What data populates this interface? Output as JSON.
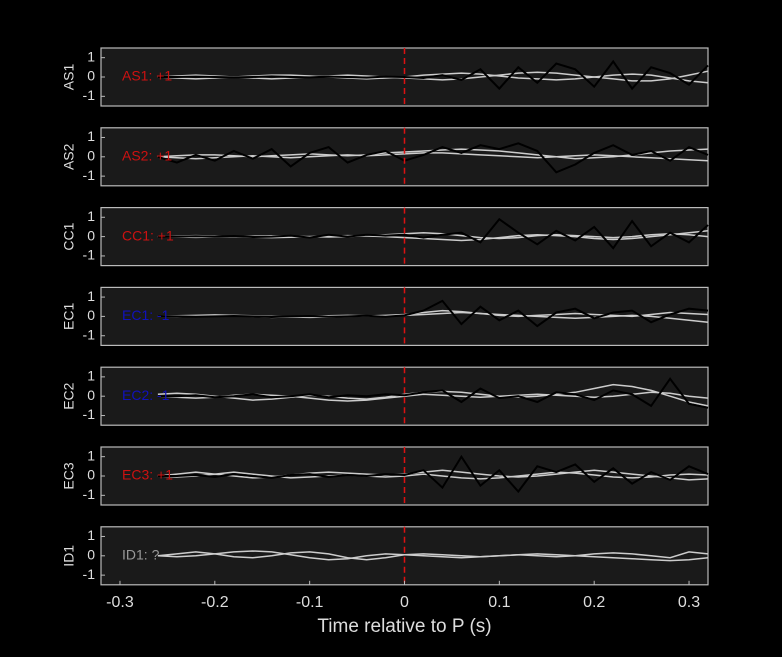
{
  "chart_data": [
    {
      "type": "line",
      "ylabel": "AS1",
      "annotation": "AS1: +1",
      "annotation_color": "#cc1111",
      "xlim": [
        -0.32,
        0.32
      ],
      "ylim": [
        -1.5,
        1.5
      ],
      "yticks": [
        -1,
        0,
        1
      ],
      "vline": 0,
      "vline_color": "#dd1111",
      "x": [
        -0.26,
        -0.24,
        -0.22,
        -0.2,
        -0.18,
        -0.16,
        -0.14,
        -0.12,
        -0.1,
        -0.08,
        -0.06,
        -0.04,
        -0.02,
        0,
        0.02,
        0.04,
        0.06,
        0.08,
        0.1,
        0.12,
        0.14,
        0.16,
        0.18,
        0.2,
        0.22,
        0.24,
        0.26,
        0.28,
        0.3,
        0.32
      ],
      "series": [
        {
          "color": "#cccccc",
          "values": [
            0,
            0.05,
            0.1,
            0.05,
            0,
            -0.05,
            -0.1,
            -0.05,
            0,
            0.05,
            0.1,
            0.05,
            0,
            -0.05,
            -0.1,
            -0.15,
            -0.1,
            0,
            0.1,
            0.2,
            0.25,
            0.2,
            0.1,
            0,
            -0.1,
            -0.2,
            -0.2,
            -0.1,
            0.1,
            0.3
          ]
        },
        {
          "color": "#cccccc",
          "values": [
            0,
            -0.05,
            -0.1,
            -0.05,
            0,
            0.05,
            0.1,
            0.1,
            0.05,
            0,
            -0.05,
            -0.1,
            -0.05,
            0,
            0.1,
            0.15,
            0.2,
            0.15,
            0.05,
            -0.05,
            -0.1,
            -0.15,
            -0.1,
            0,
            0.1,
            0.15,
            0.1,
            -0.05,
            -0.2,
            -0.3
          ]
        },
        {
          "color": "#000000",
          "values": [
            0,
            0,
            0.02,
            0,
            -0.02,
            0,
            0.03,
            0,
            -0.02,
            0.02,
            0,
            -0.03,
            0.02,
            0,
            -0.05,
            0.1,
            -0.15,
            0.4,
            -0.6,
            0.5,
            -0.3,
            0.7,
            0.4,
            -0.5,
            0.8,
            -0.6,
            0.5,
            0.2,
            -0.4,
            0.6
          ]
        }
      ]
    },
    {
      "type": "line",
      "ylabel": "AS2",
      "annotation": "AS2: +1",
      "annotation_color": "#cc1111",
      "xlim": [
        -0.32,
        0.32
      ],
      "ylim": [
        -1.5,
        1.5
      ],
      "yticks": [
        -1,
        0,
        1
      ],
      "vline": 0,
      "vline_color": "#dd1111",
      "x": [
        -0.26,
        -0.24,
        -0.22,
        -0.2,
        -0.18,
        -0.16,
        -0.14,
        -0.12,
        -0.1,
        -0.08,
        -0.06,
        -0.04,
        -0.02,
        0,
        0.02,
        0.04,
        0.06,
        0.08,
        0.1,
        0.12,
        0.14,
        0.16,
        0.18,
        0.2,
        0.22,
        0.24,
        0.26,
        0.28,
        0.3,
        0.32
      ],
      "series": [
        {
          "color": "#cccccc",
          "values": [
            0,
            0.05,
            0.1,
            0.1,
            0.05,
            0,
            0.05,
            0.1,
            0.15,
            0.1,
            0.05,
            0.1,
            0.2,
            0.25,
            0.3,
            0.35,
            0.4,
            0.35,
            0.3,
            0.2,
            0.1,
            0,
            -0.1,
            -0.05,
            0,
            0.1,
            0.2,
            0.3,
            0.35,
            0.4
          ]
        },
        {
          "color": "#cccccc",
          "values": [
            0,
            -0.05,
            -0.1,
            -0.05,
            0,
            0.05,
            0,
            -0.05,
            0,
            0.05,
            0.1,
            0.05,
            0.1,
            0.15,
            0.2,
            0.2,
            0.15,
            0.1,
            0.05,
            0,
            -0.05,
            0,
            0.05,
            0.1,
            0.05,
            0,
            -0.05,
            -0.1,
            -0.15,
            -0.2
          ]
        },
        {
          "color": "#000000",
          "values": [
            0,
            -0.3,
            0.1,
            -0.2,
            0.3,
            -0.1,
            0.4,
            -0.5,
            0.2,
            0.5,
            -0.3,
            0.1,
            0.3,
            -0.2,
            0.1,
            0.5,
            0.2,
            0.6,
            0.4,
            0.7,
            0.3,
            -0.8,
            -0.4,
            0.2,
            0.6,
            0.1,
            0.3,
            -0.2,
            0.5,
            0.1
          ]
        }
      ]
    },
    {
      "type": "line",
      "ylabel": "CC1",
      "annotation": "CC1: +1",
      "annotation_color": "#cc1111",
      "xlim": [
        -0.32,
        0.32
      ],
      "ylim": [
        -1.5,
        1.5
      ],
      "yticks": [
        -1,
        0,
        1
      ],
      "vline": 0,
      "vline_color": "#dd1111",
      "x": [
        -0.26,
        -0.24,
        -0.22,
        -0.2,
        -0.18,
        -0.16,
        -0.14,
        -0.12,
        -0.1,
        -0.08,
        -0.06,
        -0.04,
        -0.02,
        0,
        0.02,
        0.04,
        0.06,
        0.08,
        0.1,
        0.12,
        0.14,
        0.16,
        0.18,
        0.2,
        0.22,
        0.24,
        0.26,
        0.28,
        0.3,
        0.32
      ],
      "series": [
        {
          "color": "#cccccc",
          "values": [
            0,
            0.03,
            0.05,
            0.03,
            0,
            -0.03,
            -0.05,
            -0.03,
            0,
            0.03,
            0.05,
            0.03,
            0,
            -0.05,
            -0.1,
            -0.15,
            -0.2,
            -0.15,
            -0.05,
            0.05,
            0.1,
            0.05,
            0,
            -0.1,
            -0.15,
            -0.1,
            0,
            0.1,
            0.2,
            0.3
          ]
        },
        {
          "color": "#cccccc",
          "values": [
            0,
            -0.02,
            -0.04,
            -0.02,
            0,
            0.02,
            0.04,
            0.02,
            0,
            -0.02,
            0,
            0.05,
            0.1,
            0.15,
            0.2,
            0.15,
            0.05,
            -0.05,
            -0.1,
            -0.05,
            0.05,
            0.1,
            0.05,
            0,
            -0.05,
            0,
            0.1,
            0.15,
            0.1,
            0
          ]
        },
        {
          "color": "#000000",
          "values": [
            0,
            0,
            0.02,
            0,
            0.03,
            -0.02,
            0,
            0.05,
            -0.05,
            0.1,
            0,
            0.1,
            0.05,
            0.1,
            -0.05,
            0.1,
            0.2,
            -0.3,
            0.9,
            0.2,
            -0.4,
            0.3,
            -0.2,
            0.5,
            -0.6,
            0.8,
            -0.5,
            0.2,
            -0.3,
            0.6
          ]
        }
      ]
    },
    {
      "type": "line",
      "ylabel": "EC1",
      "annotation": "EC1: -1",
      "annotation_color": "#1111bb",
      "xlim": [
        -0.32,
        0.32
      ],
      "ylim": [
        -1.5,
        1.5
      ],
      "yticks": [
        -1,
        0,
        1
      ],
      "vline": 0,
      "vline_color": "#dd1111",
      "x": [
        -0.26,
        -0.24,
        -0.22,
        -0.2,
        -0.18,
        -0.16,
        -0.14,
        -0.12,
        -0.1,
        -0.08,
        -0.06,
        -0.04,
        -0.02,
        0,
        0.02,
        0.04,
        0.06,
        0.08,
        0.1,
        0.12,
        0.14,
        0.16,
        0.18,
        0.2,
        0.22,
        0.24,
        0.26,
        0.28,
        0.3,
        0.32
      ],
      "series": [
        {
          "color": "#cccccc",
          "values": [
            0,
            0.03,
            0.05,
            0.08,
            0.05,
            0,
            -0.05,
            -0.03,
            0,
            0.03,
            0.05,
            0.03,
            0,
            0.05,
            0.1,
            0.15,
            0.2,
            0.15,
            0.1,
            0.05,
            0,
            -0.05,
            -0.1,
            -0.05,
            0,
            0.05,
            0,
            -0.1,
            -0.2,
            -0.3
          ]
        },
        {
          "color": "#cccccc",
          "values": [
            0,
            -0.02,
            0,
            0.02,
            0.05,
            0.03,
            0,
            -0.03,
            -0.05,
            -0.03,
            0,
            0.02,
            0.05,
            0.1,
            0.2,
            0.3,
            0.25,
            0.15,
            0.05,
            0,
            0.05,
            0.1,
            0.15,
            0.1,
            0.05,
            0,
            0.1,
            0.2,
            0.15,
            0.1
          ]
        },
        {
          "color": "#000000",
          "values": [
            0,
            0,
            -0.02,
            0,
            0.02,
            0,
            -0.03,
            0,
            0.02,
            -0.02,
            0,
            0.03,
            -0.02,
            0.05,
            0.3,
            0.8,
            -0.4,
            0.5,
            -0.2,
            0.3,
            -0.5,
            0.2,
            0.4,
            -0.1,
            0.2,
            0.3,
            -0.3,
            0.1,
            0.4,
            0.3
          ]
        }
      ]
    },
    {
      "type": "line",
      "ylabel": "EC2",
      "annotation": "EC2: -1",
      "annotation_color": "#1111bb",
      "xlim": [
        -0.32,
        0.32
      ],
      "ylim": [
        -1.5,
        1.5
      ],
      "yticks": [
        -1,
        0,
        1
      ],
      "vline": 0,
      "vline_color": "#dd1111",
      "x": [
        -0.26,
        -0.24,
        -0.22,
        -0.2,
        -0.18,
        -0.16,
        -0.14,
        -0.12,
        -0.1,
        -0.08,
        -0.06,
        -0.04,
        -0.02,
        0,
        0.02,
        0.04,
        0.06,
        0.08,
        0.1,
        0.12,
        0.14,
        0.16,
        0.18,
        0.2,
        0.22,
        0.24,
        0.26,
        0.28,
        0.3,
        0.32
      ],
      "series": [
        {
          "color": "#cccccc",
          "values": [
            0.1,
            0.15,
            0.1,
            0,
            -0.1,
            -0.2,
            -0.15,
            -0.05,
            0.05,
            0,
            -0.1,
            -0.15,
            -0.05,
            0.1,
            0.2,
            0.25,
            0.2,
            0.1,
            0,
            -0.05,
            0,
            0.1,
            0.2,
            0.4,
            0.6,
            0.5,
            0.3,
            0,
            -0.3,
            -0.5
          ]
        },
        {
          "color": "#cccccc",
          "values": [
            0,
            -0.05,
            -0.1,
            -0.05,
            0.05,
            0.1,
            0.05,
            0,
            -0.1,
            -0.2,
            -0.25,
            -0.2,
            -0.1,
            0,
            0.1,
            0.05,
            0,
            -0.05,
            0,
            0.05,
            0.1,
            0.05,
            0,
            -0.05,
            0,
            0.1,
            0.2,
            0.15,
            0,
            -0.1
          ]
        },
        {
          "color": "#000000",
          "values": [
            0,
            0,
            0.05,
            -0.05,
            0,
            0.1,
            -0.05,
            0,
            0.1,
            -0.05,
            0.05,
            0,
            0.1,
            0.05,
            0.2,
            0.3,
            -0.3,
            0.4,
            -0.1,
            0,
            -0.3,
            0.2,
            0.1,
            -0.2,
            0.3,
            0.1,
            -0.5,
            0.9,
            -0.4,
            -0.6
          ]
        }
      ]
    },
    {
      "type": "line",
      "ylabel": "EC3",
      "annotation": "EC3: +1",
      "annotation_color": "#cc1111",
      "xlim": [
        -0.32,
        0.32
      ],
      "ylim": [
        -1.5,
        1.5
      ],
      "yticks": [
        -1,
        0,
        1
      ],
      "vline": 0,
      "vline_color": "#dd1111",
      "x": [
        -0.26,
        -0.24,
        -0.22,
        -0.2,
        -0.18,
        -0.16,
        -0.14,
        -0.12,
        -0.1,
        -0.08,
        -0.06,
        -0.04,
        -0.02,
        0,
        0.02,
        0.04,
        0.06,
        0.08,
        0.1,
        0.12,
        0.14,
        0.16,
        0.18,
        0.2,
        0.22,
        0.24,
        0.26,
        0.28,
        0.3,
        0.32
      ],
      "series": [
        {
          "color": "#cccccc",
          "values": [
            0,
            0.1,
            0.2,
            0.1,
            0,
            -0.1,
            -0.05,
            0.05,
            0.15,
            0.2,
            0.15,
            0.1,
            0.05,
            0.1,
            0.2,
            0.3,
            0.2,
            0.1,
            0,
            -0.05,
            0,
            0.1,
            0.2,
            0.3,
            0.2,
            0.1,
            0,
            -0.1,
            -0.2,
            -0.15
          ]
        },
        {
          "color": "#cccccc",
          "values": [
            0,
            -0.05,
            0,
            0.1,
            0.2,
            0.1,
            0,
            -0.1,
            -0.05,
            0,
            0.05,
            0,
            -0.05,
            0,
            0.1,
            0,
            -0.1,
            -0.15,
            -0.1,
            0,
            0.1,
            0.2,
            0.15,
            0.05,
            -0.05,
            -0.1,
            -0.05,
            0.05,
            0.1,
            0.05
          ]
        },
        {
          "color": "#000000",
          "values": [
            0,
            0,
            0.05,
            -0.05,
            0.1,
            0,
            -0.1,
            0.05,
            0.1,
            -0.05,
            0.05,
            0,
            0.1,
            0.05,
            0.3,
            -0.6,
            1.0,
            -0.5,
            0.3,
            -0.8,
            0.5,
            0.2,
            0.6,
            -0.3,
            0.4,
            -0.4,
            0.2,
            -0.2,
            0.5,
            0.1
          ]
        }
      ]
    },
    {
      "type": "line",
      "ylabel": "ID1",
      "annotation": "ID1: ?",
      "annotation_color": "#999999",
      "xlim": [
        -0.32,
        0.32
      ],
      "ylim": [
        -1.5,
        1.5
      ],
      "yticks": [
        -1,
        0,
        1
      ],
      "vline": 0,
      "vline_color": "#dd1111",
      "xlabel": "Time relative to P (s)",
      "xticks": [
        -0.3,
        -0.2,
        -0.1,
        0,
        0.1,
        0.2,
        0.3
      ],
      "x": [
        -0.26,
        -0.24,
        -0.22,
        -0.2,
        -0.18,
        -0.16,
        -0.14,
        -0.12,
        -0.1,
        -0.08,
        -0.06,
        -0.04,
        -0.02,
        0,
        0.02,
        0.04,
        0.06,
        0.08,
        0.1,
        0.12,
        0.14,
        0.16,
        0.18,
        0.2,
        0.22,
        0.24,
        0.26,
        0.28,
        0.3,
        0.32
      ],
      "series": [
        {
          "color": "#cccccc",
          "values": [
            0,
            0.1,
            0.2,
            0.1,
            -0.05,
            -0.1,
            0,
            0.15,
            0.2,
            0.1,
            -0.1,
            -0.2,
            -0.1,
            0.05,
            0.1,
            0.05,
            0,
            -0.05,
            0,
            0.05,
            0,
            -0.05,
            0,
            0.1,
            0.15,
            0.1,
            0,
            -0.1,
            0.2,
            0.1
          ]
        },
        {
          "color": "#cccccc",
          "values": [
            0,
            -0.05,
            0,
            0.1,
            0.2,
            0.25,
            0.2,
            0.05,
            -0.1,
            -0.2,
            -0.15,
            0,
            0.1,
            0.05,
            0,
            -0.05,
            -0.1,
            -0.05,
            0,
            0.05,
            0.1,
            0.05,
            0,
            -0.05,
            -0.1,
            -0.15,
            -0.2,
            -0.25,
            -0.2,
            -0.1
          ]
        }
      ]
    }
  ]
}
